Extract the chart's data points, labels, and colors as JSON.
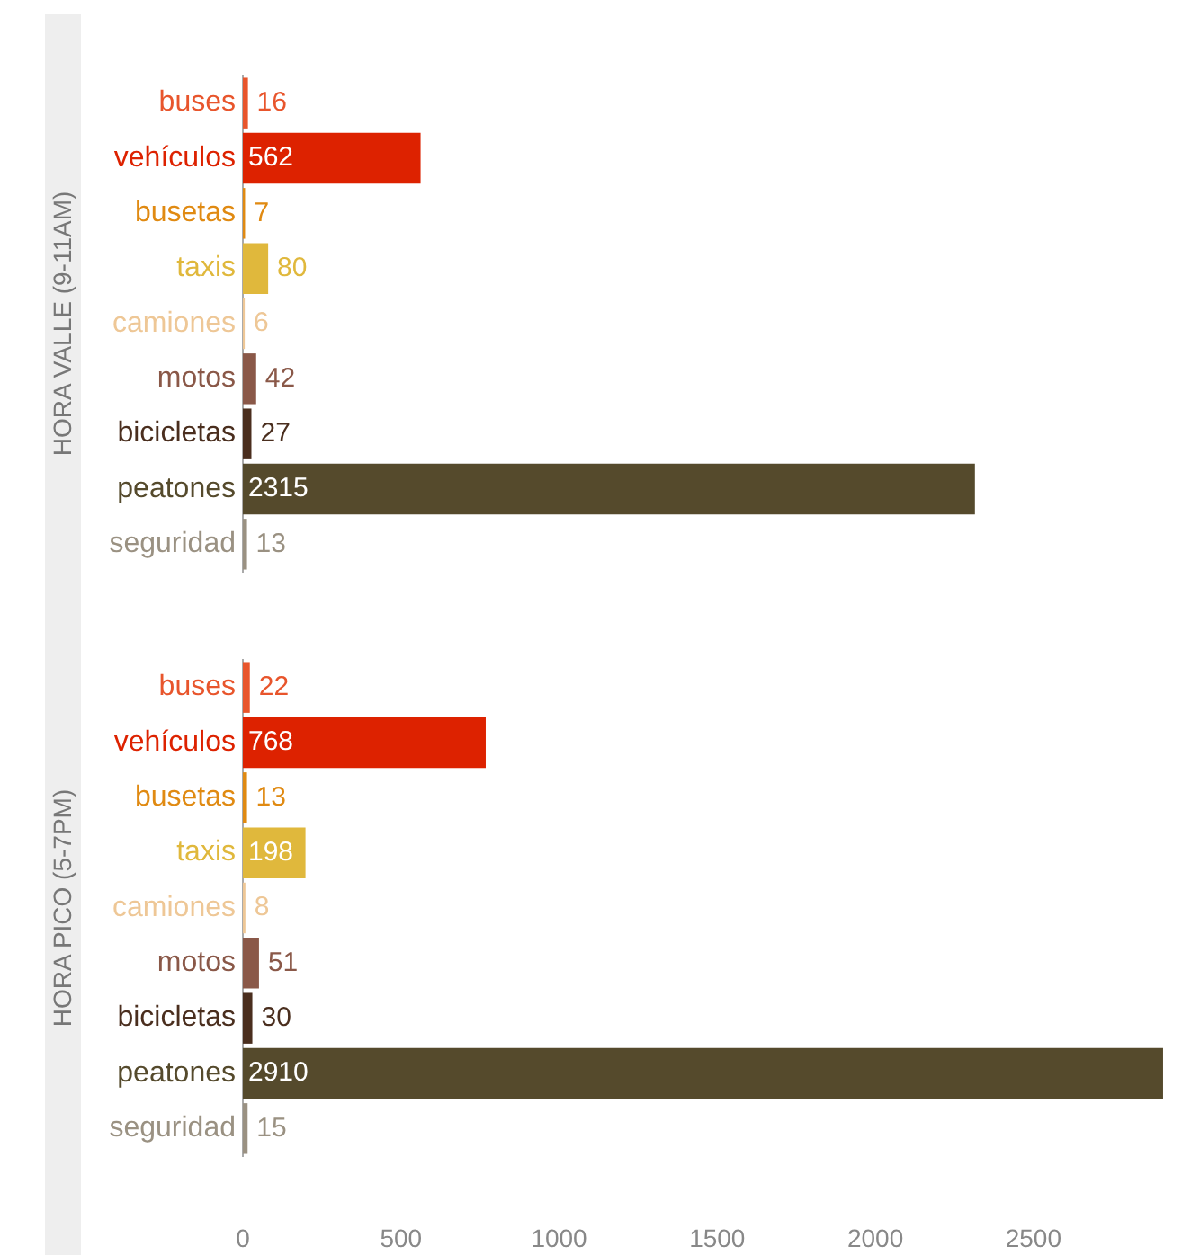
{
  "chart_data": [
    {
      "type": "bar",
      "orientation": "horizontal",
      "ylabel": "HORA VALLE (9-11AM)",
      "categories": [
        "buses",
        "vehículos",
        "busetas",
        "taxis",
        "camiones",
        "motos",
        "bicicletas",
        "peatones",
        "seguridad"
      ],
      "values": [
        16,
        562,
        7,
        80,
        6,
        42,
        27,
        2315,
        13
      ],
      "colors": [
        "#e8552c",
        "#dd2200",
        "#e08a12",
        "#e0b83c",
        "#eec796",
        "#8a5848",
        "#4a2e1e",
        "#554a2c",
        "#9a9182"
      ],
      "tick_labels": "y",
      "data_labels": true,
      "grid": false
    },
    {
      "type": "bar",
      "orientation": "horizontal",
      "ylabel": "HORA PICO (5-7PM)",
      "categories": [
        "buses",
        "vehículos",
        "busetas",
        "taxis",
        "camiones",
        "motos",
        "bicicletas",
        "peatones",
        "seguridad"
      ],
      "values": [
        22,
        768,
        13,
        198,
        8,
        51,
        30,
        2910,
        15
      ],
      "colors": [
        "#e8552c",
        "#dd2200",
        "#e08a12",
        "#e0b83c",
        "#eec796",
        "#8a5848",
        "#4a2e1e",
        "#554a2c",
        "#9a9182"
      ],
      "xlim": [
        0,
        2930
      ],
      "xticks": [
        0,
        500,
        1000,
        1500,
        2000,
        2500
      ],
      "data_labels": true,
      "grid": false
    }
  ]
}
